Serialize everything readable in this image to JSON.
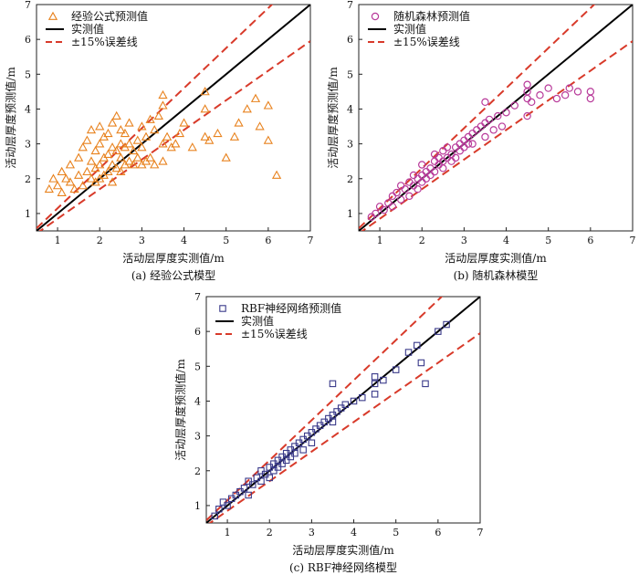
{
  "chart_data": [
    {
      "type": "scatter",
      "xlabel": "活动层厚度实测值/m",
      "ylabel": "活动层厚度预测值/m",
      "caption": "(a) 经验公式模型",
      "xlim": [
        0.5,
        7
      ],
      "ylim": [
        0.5,
        7
      ],
      "ticks": [
        1,
        2,
        3,
        4,
        5,
        6,
        7
      ],
      "marker": "triangle",
      "marker_color": "#E8821E",
      "reference_color": "#000000",
      "error_color": "#D83A2A",
      "error_band": 0.15,
      "legend": {
        "position": "top-left",
        "items": [
          "经验公式预测值",
          "实测值",
          "±15%误差线"
        ]
      },
      "x": [
        0.8,
        0.9,
        1.0,
        1.1,
        1.1,
        1.2,
        1.3,
        1.3,
        1.4,
        1.5,
        1.5,
        1.6,
        1.6,
        1.7,
        1.7,
        1.8,
        1.8,
        1.8,
        1.9,
        1.9,
        1.9,
        2.0,
        2.0,
        2.0,
        2.0,
        2.1,
        2.1,
        2.1,
        2.2,
        2.2,
        2.2,
        2.3,
        2.3,
        2.3,
        2.3,
        2.4,
        2.4,
        2.4,
        2.5,
        2.5,
        2.5,
        2.5,
        2.6,
        2.6,
        2.6,
        2.7,
        2.7,
        2.7,
        2.8,
        2.8,
        2.9,
        2.9,
        3.0,
        3.0,
        3.0,
        3.1,
        3.1,
        3.2,
        3.2,
        3.3,
        3.3,
        3.4,
        3.5,
        3.5,
        3.5,
        3.5,
        3.6,
        3.7,
        3.8,
        3.9,
        4.0,
        4.2,
        4.5,
        4.5,
        4.5,
        4.6,
        4.8,
        5.0,
        5.2,
        5.3,
        5.5,
        5.7,
        5.8,
        6.0,
        6.0,
        6.2
      ],
      "y": [
        1.7,
        2.0,
        1.8,
        2.2,
        1.6,
        2.0,
        1.9,
        2.4,
        1.7,
        2.1,
        2.6,
        1.8,
        2.9,
        2.2,
        3.1,
        2.0,
        2.5,
        3.4,
        1.9,
        2.3,
        2.8,
        2.0,
        2.4,
        3.0,
        3.5,
        2.1,
        2.6,
        3.2,
        2.2,
        2.7,
        3.3,
        1.9,
        2.4,
        2.9,
        3.6,
        2.3,
        2.8,
        3.8,
        2.2,
        2.6,
        3.0,
        3.4,
        2.4,
        2.9,
        3.3,
        2.5,
        3.0,
        3.6,
        2.4,
        2.8,
        2.6,
        3.1,
        2.4,
        2.9,
        3.5,
        2.5,
        3.2,
        2.6,
        3.7,
        2.4,
        3.4,
        3.8,
        2.5,
        3.0,
        4.1,
        4.4,
        3.2,
        2.9,
        3.0,
        3.3,
        3.6,
        2.9,
        3.2,
        4.0,
        4.5,
        3.1,
        3.3,
        2.6,
        3.2,
        3.6,
        4.0,
        4.3,
        3.5,
        4.1,
        3.1,
        2.1
      ]
    },
    {
      "type": "scatter",
      "xlabel": "活动层厚度实测值/m",
      "ylabel": "活动层厚度预测值/m",
      "caption": "(b) 随机森林模型",
      "xlim": [
        0.5,
        7
      ],
      "ylim": [
        0.5,
        7
      ],
      "ticks": [
        1,
        2,
        3,
        4,
        5,
        6,
        7
      ],
      "marker": "circle",
      "marker_color": "#B83A9A",
      "reference_color": "#000000",
      "error_color": "#D83A2A",
      "error_band": 0.15,
      "legend": {
        "position": "top-left",
        "items": [
          "随机森林预测值",
          "实测值",
          "±15%误差线"
        ]
      },
      "x": [
        0.8,
        0.9,
        1.0,
        1.1,
        1.2,
        1.3,
        1.3,
        1.4,
        1.5,
        1.5,
        1.6,
        1.7,
        1.7,
        1.8,
        1.8,
        1.9,
        1.9,
        2.0,
        2.0,
        2.0,
        2.1,
        2.1,
        2.2,
        2.2,
        2.3,
        2.3,
        2.3,
        2.4,
        2.4,
        2.5,
        2.5,
        2.5,
        2.6,
        2.6,
        2.7,
        2.7,
        2.8,
        2.8,
        2.9,
        2.9,
        3.0,
        3.0,
        3.1,
        3.1,
        3.2,
        3.2,
        3.3,
        3.4,
        3.5,
        3.5,
        3.5,
        3.6,
        3.7,
        3.8,
        3.9,
        4.0,
        4.2,
        4.5,
        4.5,
        4.5,
        4.5,
        4.6,
        4.8,
        5.0,
        5.2,
        5.4,
        5.5,
        5.7,
        6.0,
        6.0
      ],
      "y": [
        0.9,
        1.0,
        1.2,
        1.1,
        1.3,
        1.5,
        1.2,
        1.6,
        1.4,
        1.8,
        1.7,
        1.9,
        1.5,
        1.8,
        2.1,
        2.0,
        1.7,
        2.1,
        1.9,
        2.4,
        2.2,
        2.0,
        2.3,
        2.1,
        2.5,
        2.2,
        2.7,
        2.4,
        2.6,
        2.5,
        2.3,
        2.8,
        2.6,
        2.9,
        2.7,
        2.5,
        2.9,
        2.6,
        3.0,
        2.8,
        3.1,
        2.9,
        3.2,
        3.0,
        3.3,
        3.0,
        3.4,
        3.5,
        3.2,
        3.6,
        4.2,
        3.7,
        3.4,
        3.8,
        3.5,
        3.9,
        4.1,
        3.8,
        4.3,
        4.5,
        4.7,
        4.2,
        4.4,
        4.6,
        4.3,
        4.4,
        4.6,
        4.5,
        4.5,
        4.3
      ]
    },
    {
      "type": "scatter",
      "xlabel": "活动层厚度实测值/m",
      "ylabel": "活动层厚度预测值/m",
      "caption": "(c) RBF神经网络模型",
      "xlim": [
        0.5,
        7
      ],
      "ylim": [
        0.5,
        7
      ],
      "ticks": [
        1,
        2,
        3,
        4,
        5,
        6,
        7
      ],
      "marker": "square",
      "marker_color": "#3A3A8A",
      "reference_color": "#000000",
      "error_color": "#D83A2A",
      "error_band": 0.15,
      "legend": {
        "position": "top-left",
        "items": [
          "RBF神经网络预测值",
          "实测值",
          "±15%误差线"
        ]
      },
      "x": [
        0.7,
        0.8,
        0.9,
        1.0,
        1.1,
        1.2,
        1.3,
        1.4,
        1.5,
        1.5,
        1.6,
        1.7,
        1.8,
        1.8,
        1.9,
        2.0,
        2.0,
        2.1,
        2.1,
        2.2,
        2.2,
        2.3,
        2.3,
        2.4,
        2.4,
        2.5,
        2.5,
        2.6,
        2.6,
        2.7,
        2.8,
        2.8,
        2.9,
        3.0,
        3.0,
        3.1,
        3.2,
        3.3,
        3.4,
        3.5,
        3.5,
        3.5,
        3.6,
        3.7,
        3.8,
        4.0,
        4.2,
        4.5,
        4.5,
        4.5,
        4.7,
        5.0,
        5.3,
        5.5,
        5.6,
        5.7,
        6.0,
        6.2
      ],
      "y": [
        0.7,
        0.9,
        1.1,
        1.0,
        1.2,
        1.3,
        1.4,
        1.5,
        1.3,
        1.7,
        1.6,
        1.8,
        1.7,
        2.0,
        1.9,
        2.1,
        1.8,
        2.2,
        2.0,
        2.3,
        2.1,
        2.4,
        2.2,
        2.5,
        2.3,
        2.6,
        2.4,
        2.7,
        2.5,
        2.8,
        2.9,
        2.6,
        3.0,
        3.1,
        2.8,
        3.2,
        3.3,
        3.4,
        3.5,
        3.4,
        3.6,
        4.5,
        3.7,
        3.8,
        3.9,
        4.0,
        4.1,
        4.2,
        4.5,
        4.7,
        4.6,
        4.9,
        5.4,
        5.6,
        5.1,
        4.5,
        6.0,
        6.2
      ]
    }
  ]
}
